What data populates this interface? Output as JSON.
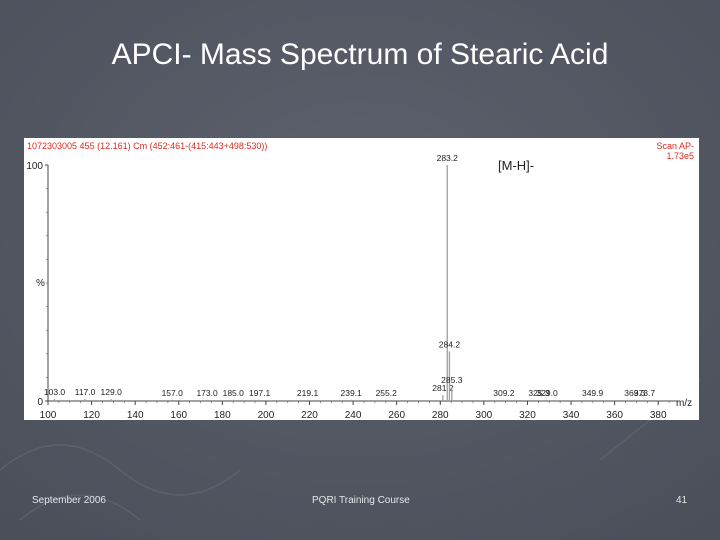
{
  "slide": {
    "title": "APCI- Mass Spectrum of Stearic Acid",
    "footer_left": "September 2006",
    "footer_center": "PQRI Training Course",
    "footer_right": "41"
  },
  "colors": {
    "background": "#555a66",
    "header_text": "#e8261c",
    "trace": "#9aa0a8"
  },
  "chart_data": {
    "type": "bar",
    "header_left": "1072303005 455 (12.161) Cm (452:461-(415:443+498:530))",
    "header_right_line1": "Scan AP-",
    "header_right_line2": "1.73e5",
    "annotation": "[M-H]-",
    "ylabel": "%",
    "xlabel": "m/z",
    "xlim": [
      100,
      390
    ],
    "ylim": [
      0,
      100
    ],
    "x_ticks": [
      100,
      120,
      140,
      160,
      180,
      200,
      220,
      240,
      260,
      280,
      300,
      320,
      340,
      360,
      380
    ],
    "y_ticks": [
      0,
      100
    ],
    "peaks": [
      {
        "x": 103.0,
        "y": 0.8,
        "label": "103.0"
      },
      {
        "x": 117.0,
        "y": 0.8,
        "label": "117.0"
      },
      {
        "x": 129.0,
        "y": 0.8,
        "label": "129.0"
      },
      {
        "x": 157.0,
        "y": 0.5,
        "label": "157.0"
      },
      {
        "x": 173.0,
        "y": 0.5,
        "label": "173.0"
      },
      {
        "x": 185.0,
        "y": 0.5,
        "label": "185.0"
      },
      {
        "x": 197.1,
        "y": 0.5,
        "label": "197.1"
      },
      {
        "x": 219.1,
        "y": 0.5,
        "label": "219.1"
      },
      {
        "x": 239.1,
        "y": 0.5,
        "label": "239.1"
      },
      {
        "x": 255.2,
        "y": 0.5,
        "label": "255.2"
      },
      {
        "x": 281.2,
        "y": 2.5,
        "label": "281.2"
      },
      {
        "x": 283.2,
        "y": 100,
        "label": "283.2"
      },
      {
        "x": 284.2,
        "y": 21,
        "label": "284.2"
      },
      {
        "x": 285.3,
        "y": 6,
        "label": "285.3"
      },
      {
        "x": 309.2,
        "y": 0.5,
        "label": "309.2"
      },
      {
        "x": 325.3,
        "y": 0.5,
        "label": "325.3"
      },
      {
        "x": 329.0,
        "y": 0.5,
        "label": "329.0"
      },
      {
        "x": 349.9,
        "y": 0.5,
        "label": "349.9"
      },
      {
        "x": 369.3,
        "y": 0.5,
        "label": "369.3"
      },
      {
        "x": 373.7,
        "y": 0.5,
        "label": "373.7"
      }
    ]
  }
}
